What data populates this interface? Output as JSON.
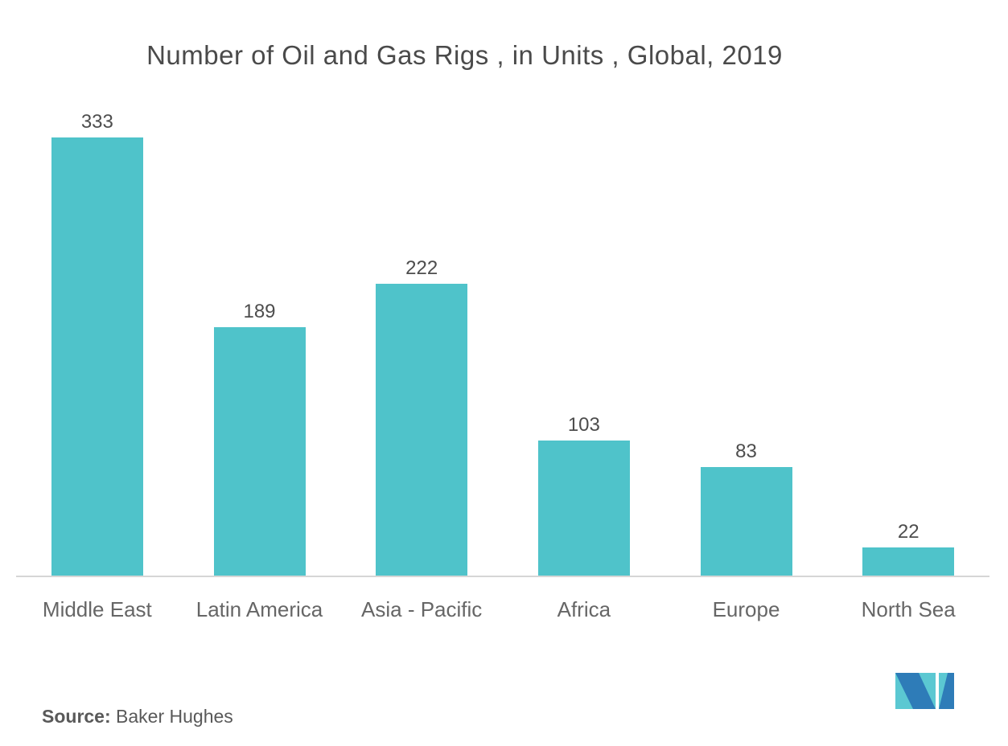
{
  "chart_data": {
    "type": "bar",
    "title": "Number of Oil and Gas Rigs , in Units , Global, 2019",
    "categories": [
      "Middle East",
      "Latin America",
      "Asia - Pacific",
      "Africa",
      "Europe",
      "North Sea"
    ],
    "values": [
      333,
      189,
      222,
      103,
      83,
      22
    ],
    "xlabel": "",
    "ylabel": "",
    "ylim": [
      0,
      350
    ],
    "grid": false,
    "legend_position": "none",
    "value_labels_shown": true,
    "bar_color": "#4fc3ca",
    "axis_line_color": "#d6d6d6",
    "title_color": "#4a4a4a",
    "value_label_color": "#4d4d4d",
    "category_label_color": "#666666"
  },
  "source": {
    "label": "Source:",
    "text": " Baker Hughes"
  },
  "logo": {
    "name": "mordor-intelligence-m-logo",
    "teal": "#5bc8d2",
    "blue": "#2e7cb8"
  }
}
